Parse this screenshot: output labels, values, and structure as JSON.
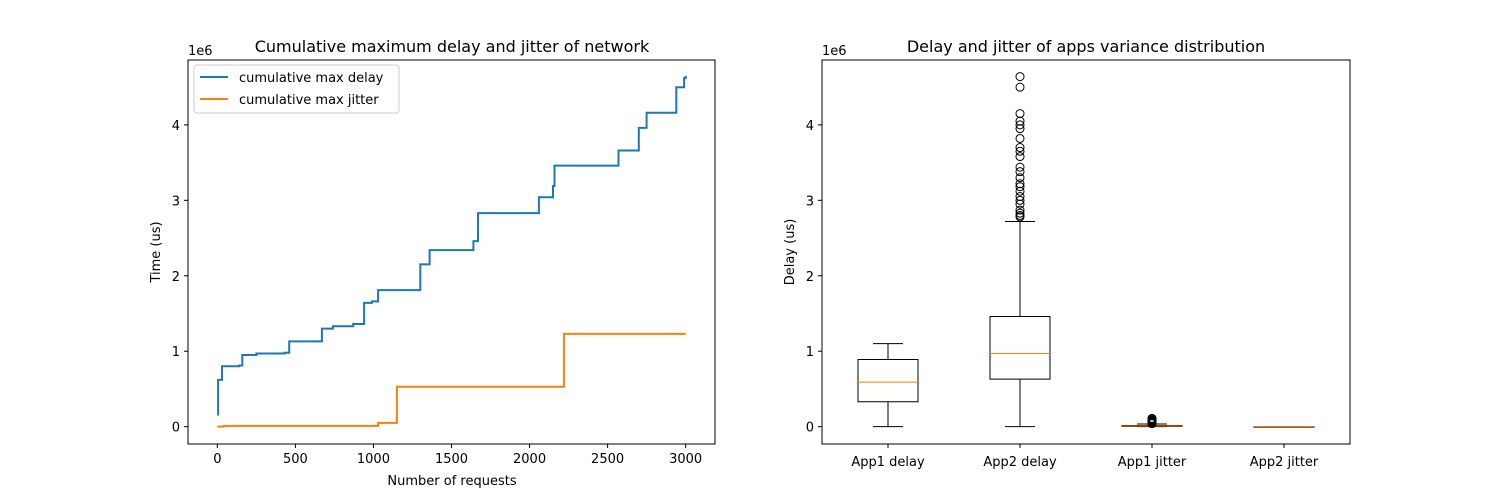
{
  "chart_data": [
    {
      "type": "line",
      "title": "Cumulative maximum delay and jitter of network",
      "xlabel": "Number of requests",
      "ylabel": "Time (us)",
      "y_multiplier": "1e6",
      "xlim": [
        -188,
        3188
      ],
      "ylim": [
        -0.23,
        4.86
      ],
      "xticks": [
        0,
        500,
        1000,
        1500,
        2000,
        2500,
        3000
      ],
      "yticks": [
        0,
        1,
        2,
        3,
        4
      ],
      "grid": false,
      "legend": "top-left",
      "series": [
        {
          "name": "cumulative max delay",
          "color": "#1f77b4",
          "steps": [
            [
              0,
              0.16
            ],
            [
              5,
              0.62
            ],
            [
              30,
              0.8
            ],
            [
              140,
              0.81
            ],
            [
              160,
              0.95
            ],
            [
              250,
              0.97
            ],
            [
              430,
              0.98
            ],
            [
              460,
              1.13
            ],
            [
              670,
              1.3
            ],
            [
              740,
              1.33
            ],
            [
              870,
              1.36
            ],
            [
              940,
              1.64
            ],
            [
              990,
              1.66
            ],
            [
              1030,
              1.81
            ],
            [
              1300,
              2.15
            ],
            [
              1360,
              2.34
            ],
            [
              1640,
              2.46
            ],
            [
              1670,
              2.83
            ],
            [
              2060,
              3.04
            ],
            [
              2150,
              3.19
            ],
            [
              2160,
              3.46
            ],
            [
              2570,
              3.66
            ],
            [
              2700,
              3.96
            ],
            [
              2750,
              4.16
            ],
            [
              2940,
              4.5
            ],
            [
              2990,
              4.62
            ],
            [
              3000,
              4.65
            ]
          ]
        },
        {
          "name": "cumulative max jitter",
          "color": "#ff7f0e",
          "steps": [
            [
              0,
              0.0
            ],
            [
              40,
              0.01
            ],
            [
              1030,
              0.05
            ],
            [
              1150,
              0.53
            ],
            [
              2220,
              1.23
            ],
            [
              3000,
              1.23
            ]
          ]
        }
      ]
    },
    {
      "type": "boxplot",
      "title": "Delay and jitter of apps variance distribution",
      "xlabel": "",
      "ylabel": "Delay (us)",
      "y_multiplier": "1e6",
      "ylim": [
        -0.23,
        4.86
      ],
      "yticks": [
        0,
        1,
        2,
        3,
        4
      ],
      "categories": [
        "App1 delay",
        "App2 delay",
        "App1 jitter",
        "App2 jitter"
      ],
      "boxes": [
        {
          "whisker_low": 0.0,
          "q1": 0.33,
          "median": 0.59,
          "q3": 0.89,
          "whisker_high": 1.1,
          "outliers": []
        },
        {
          "whisker_low": 0.0,
          "q1": 0.63,
          "median": 0.97,
          "q3": 1.46,
          "whisker_high": 2.72,
          "outliers": [
            2.78,
            2.8,
            2.83,
            2.87,
            2.95,
            3.0,
            3.05,
            3.12,
            3.18,
            3.22,
            3.3,
            3.38,
            3.44,
            3.58,
            3.65,
            3.7,
            3.82,
            3.95,
            4.0,
            4.05,
            4.15,
            4.5,
            4.64
          ]
        },
        {
          "whisker_low": 0.0,
          "q1": 0.003,
          "median": 0.008,
          "q3": 0.015,
          "whisker_high": 0.035,
          "outliers": [
            0.04,
            0.05,
            0.06,
            0.07,
            0.08,
            0.09,
            0.1,
            0.11
          ]
        },
        {
          "whisker_low": 0.0,
          "q1": 0.0,
          "median": 0.0,
          "q3": 0.0,
          "whisker_high": 0.0,
          "outliers": []
        }
      ],
      "box_color": "#000000",
      "median_color": "#ff7f0e"
    }
  ]
}
